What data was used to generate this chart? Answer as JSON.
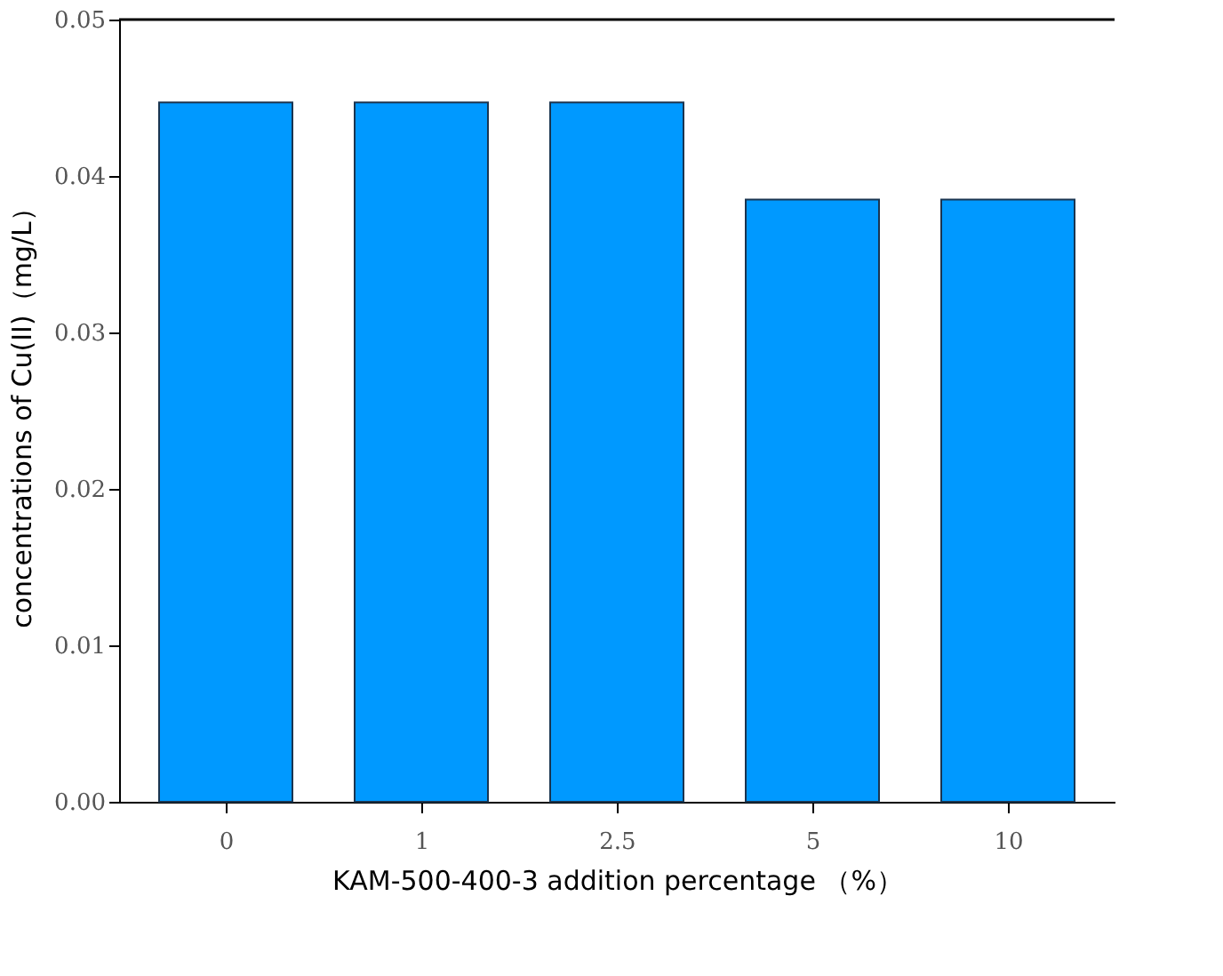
{
  "chart_data": {
    "type": "bar",
    "xlabel": "KAM-500-400-3 addition percentage （%）",
    "ylabel": "concentrations of Cu(II)（mg/L）",
    "categories": [
      "0",
      "1",
      "2.5",
      "5",
      "10"
    ],
    "values": [
      0.0447,
      0.0447,
      0.0447,
      0.0385,
      0.0385
    ],
    "color": "#0099ff",
    "ylim": [
      0,
      0.05
    ],
    "yticks": [
      {
        "value": 0,
        "label": "0.00"
      },
      0.01,
      0.02,
      0.03,
      0.04,
      0.05
    ],
    "grid": false
  }
}
